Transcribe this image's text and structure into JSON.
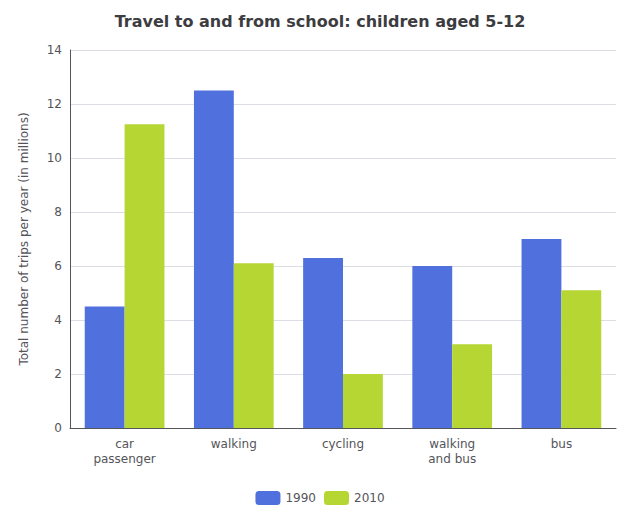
{
  "chart_data": {
    "type": "bar",
    "title": "Travel to and from school: children aged 5-12",
    "ylabel": "Total number of trips per year (in millions)",
    "categories": [
      "car\npassenger",
      "walking",
      "cycling",
      "walking\nand bus",
      "bus"
    ],
    "series": [
      {
        "name": "1990",
        "values": [
          4.5,
          12.5,
          6.3,
          6.0,
          7.0
        ]
      },
      {
        "name": "2010",
        "values": [
          11.25,
          6.1,
          2.0,
          3.1,
          5.1
        ]
      }
    ],
    "ylim": [
      0,
      14
    ],
    "yticks": [
      0,
      2,
      4,
      6,
      8,
      10,
      12,
      14
    ],
    "grid": true,
    "legend": "bottom"
  }
}
